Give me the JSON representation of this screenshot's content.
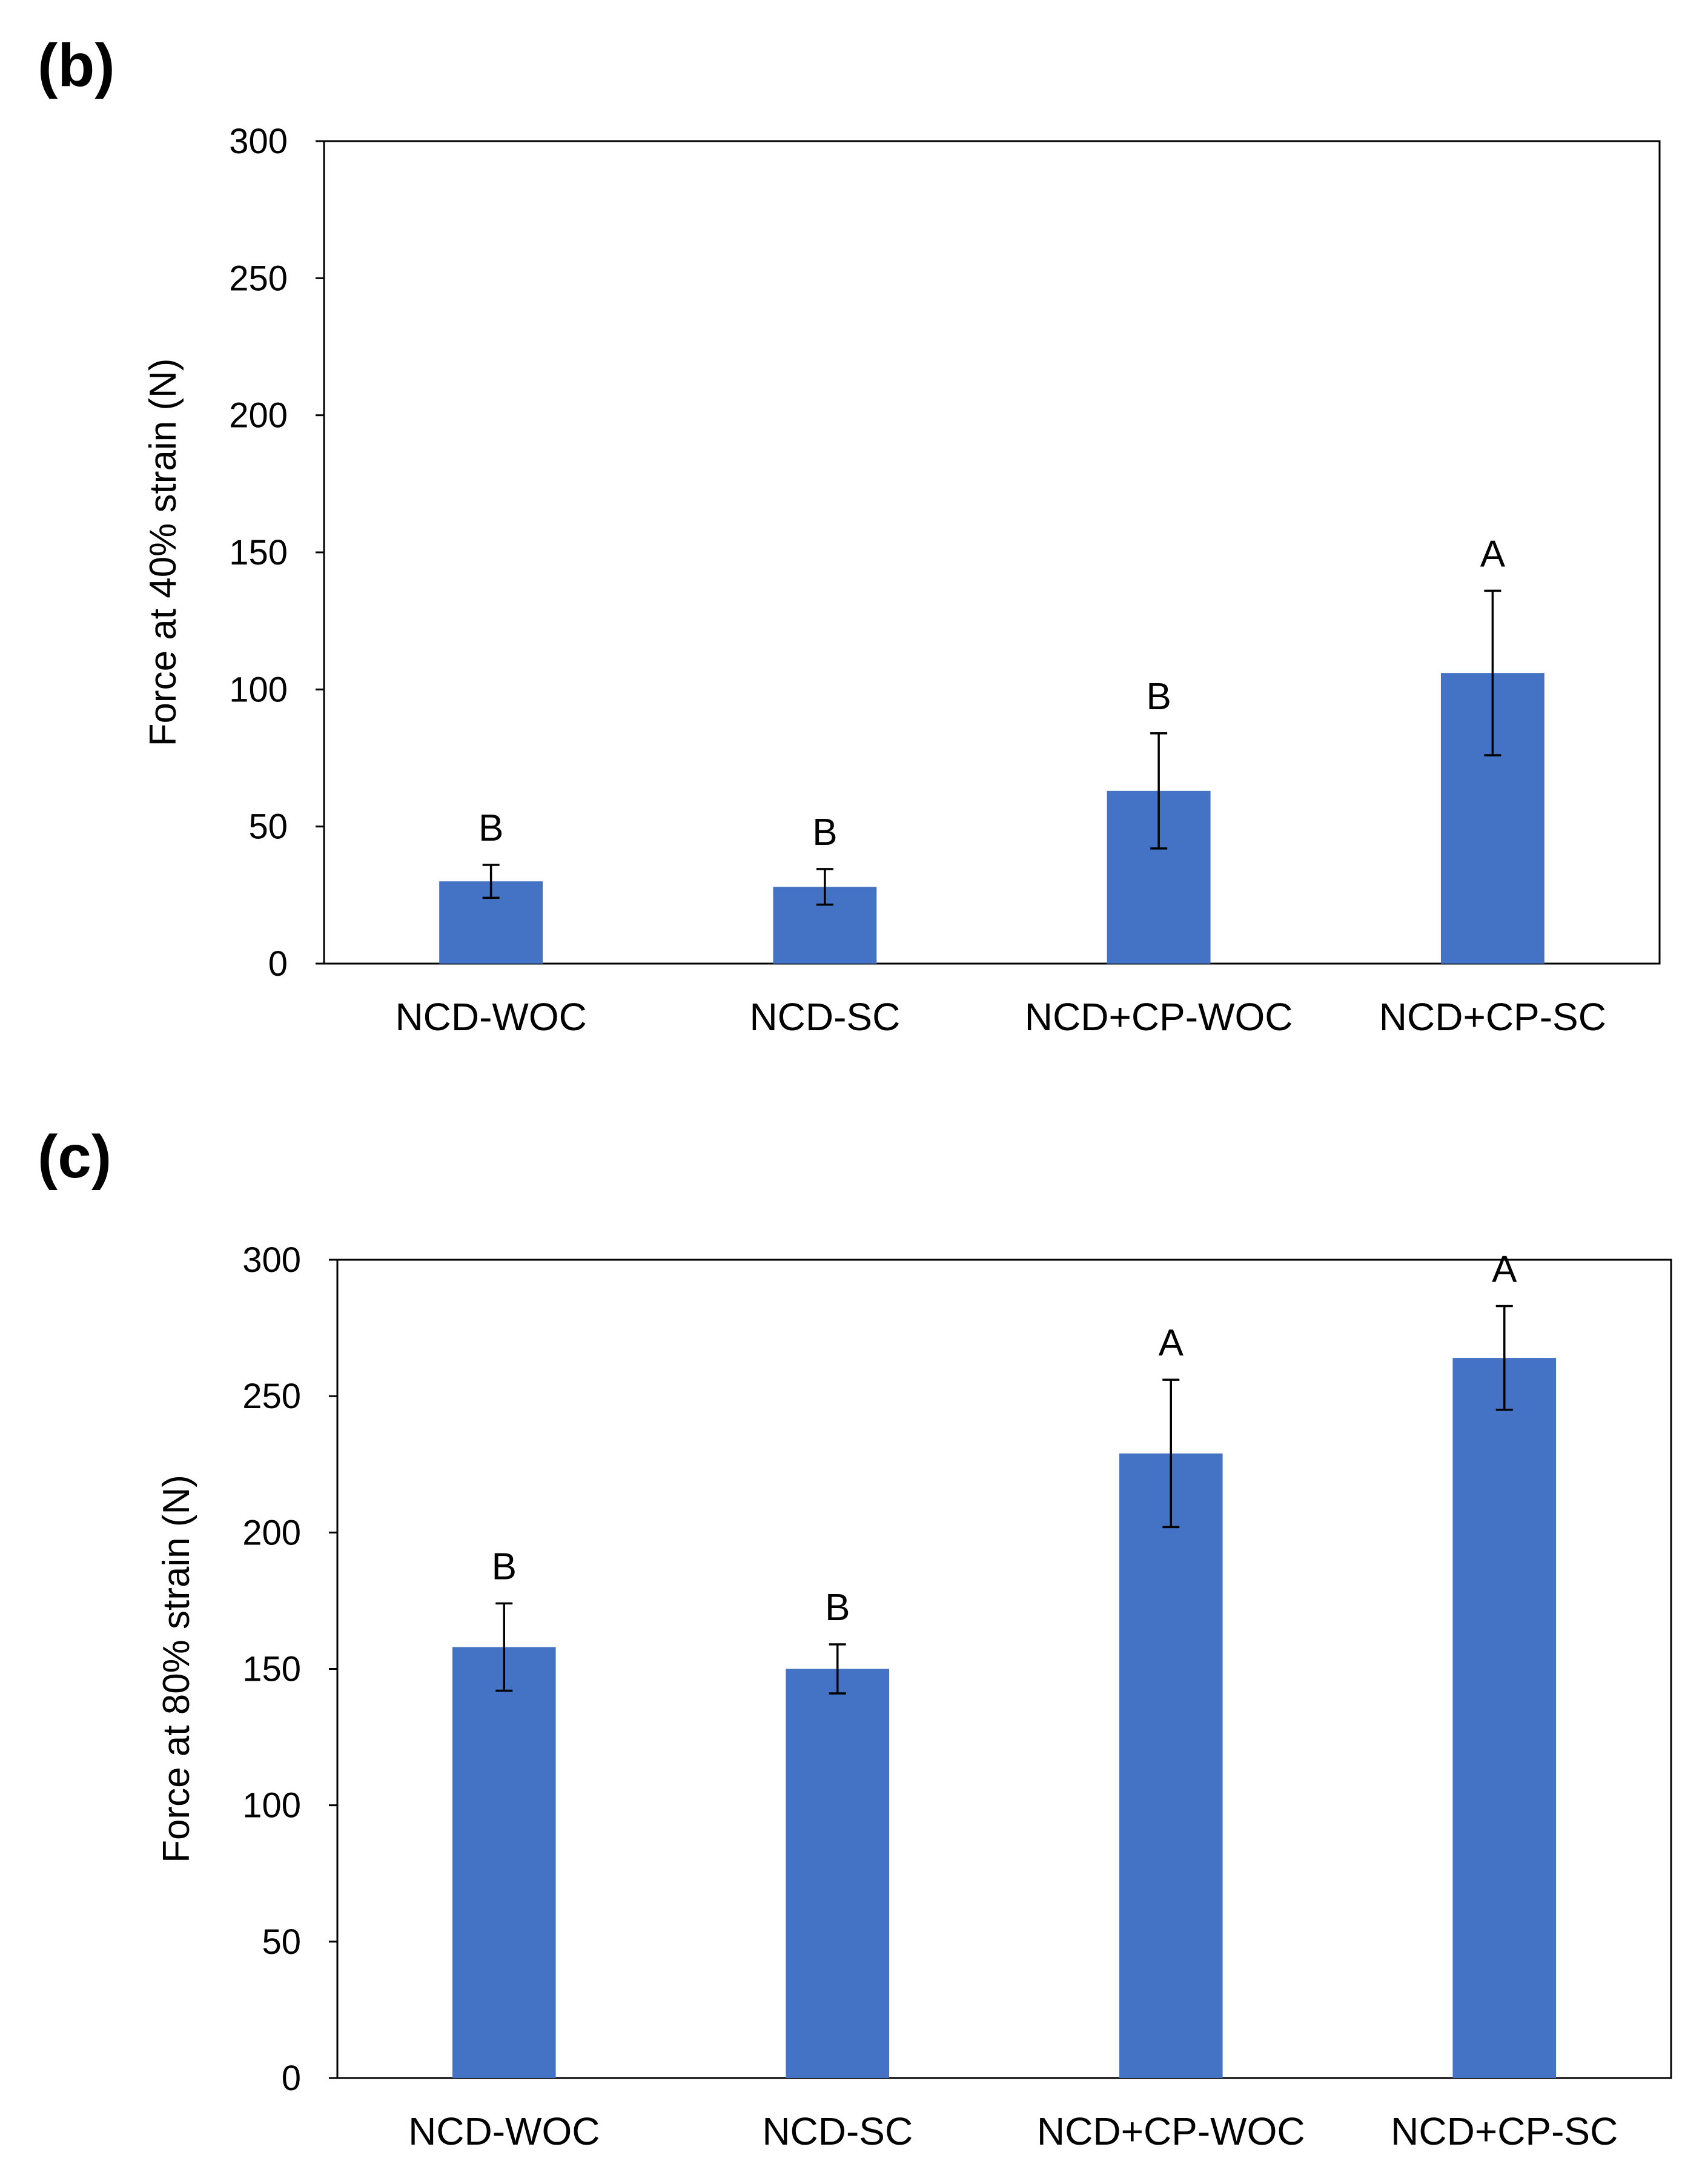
{
  "colors": {
    "bar": "#4472C4",
    "axis": "#000000",
    "text": "#000000"
  },
  "chart_data": [
    {
      "panel_label": "(b)",
      "type": "bar",
      "title": "",
      "xlabel": "",
      "ylabel": "Force at 40% strain (N)",
      "ylim": [
        0,
        300
      ],
      "yticks": [
        0,
        50,
        100,
        150,
        200,
        250,
        300
      ],
      "grid": false,
      "categories": [
        "NCD-WOC",
        "NCD-SC",
        "NCD+CP-WOC",
        "NCD+CP-SC"
      ],
      "values": [
        30,
        28,
        63,
        106
      ],
      "errors": [
        6,
        6.5,
        21,
        30
      ],
      "significance_labels": [
        "B",
        "B",
        "B",
        "A"
      ]
    },
    {
      "panel_label": "(c)",
      "type": "bar",
      "title": "",
      "xlabel": "",
      "ylabel": "Force at 80% strain (N)",
      "ylim": [
        0,
        300
      ],
      "yticks": [
        0,
        50,
        100,
        150,
        200,
        250,
        300
      ],
      "grid": false,
      "categories": [
        "NCD-WOC",
        "NCD-SC",
        "NCD+CP-WOC",
        "NCD+CP-SC"
      ],
      "values": [
        158,
        150,
        229,
        264
      ],
      "errors": [
        16,
        9,
        27,
        19
      ],
      "significance_labels": [
        "B",
        "B",
        "A",
        "A"
      ]
    }
  ]
}
